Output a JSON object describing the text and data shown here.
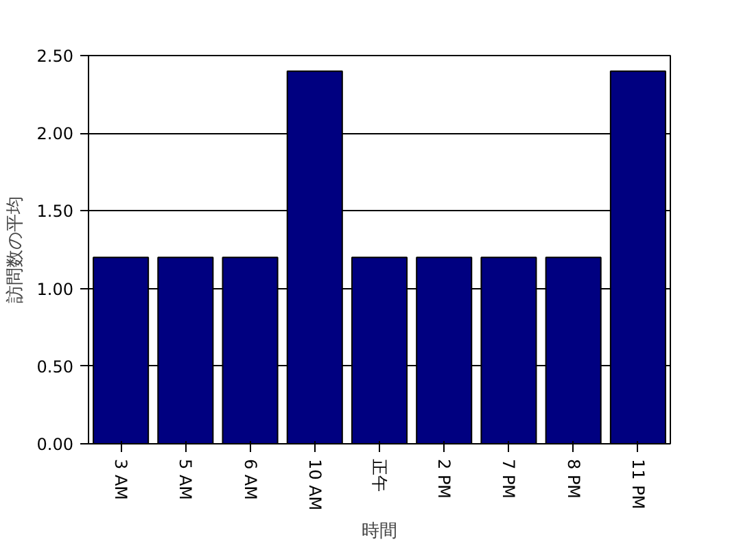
{
  "chart_data": {
    "type": "bar",
    "xlabel": "時間",
    "ylabel": "訪問数の平均",
    "categories": [
      "3 AM",
      "5 AM",
      "6 AM",
      "10 AM",
      "正午",
      "2 PM",
      "7 PM",
      "8 PM",
      "11 PM"
    ],
    "values": [
      1.2,
      1.2,
      1.2,
      2.4,
      1.2,
      1.2,
      1.2,
      1.2,
      2.4
    ],
    "color": "#000080",
    "ylim": [
      0,
      2.5
    ],
    "yticks": [
      {
        "value": 0,
        "label": "0.00"
      },
      {
        "value": 0.5,
        "label": "0.50"
      },
      {
        "value": 1,
        "label": "1.00"
      },
      {
        "value": 1.5,
        "label": "1.50"
      },
      {
        "value": 2,
        "label": "2.00"
      },
      {
        "value": 2.5,
        "label": "2.50"
      }
    ],
    "grid": "y"
  }
}
